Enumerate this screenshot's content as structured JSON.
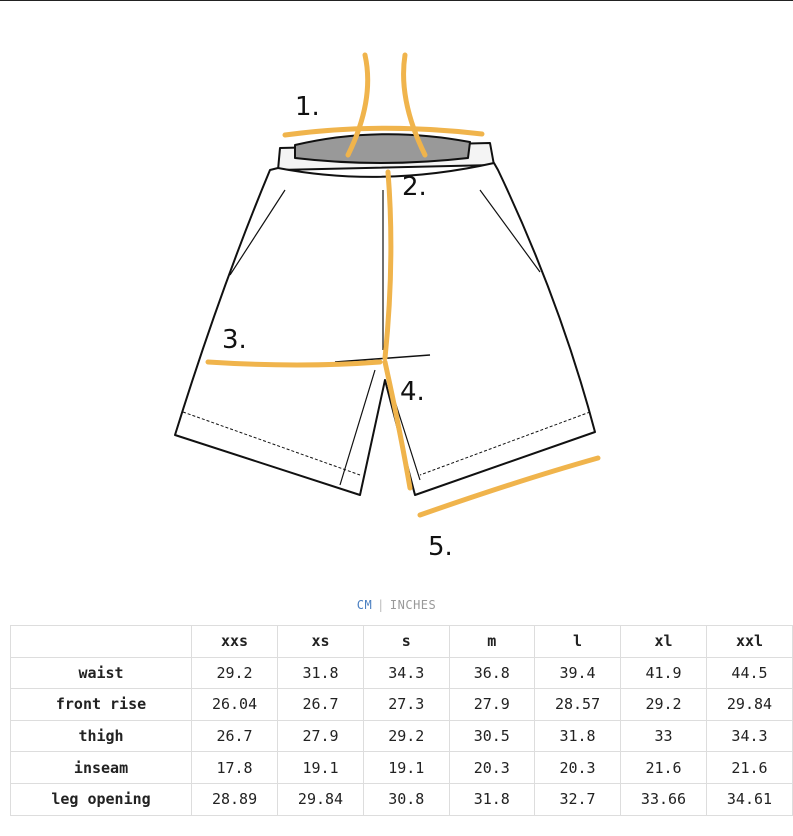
{
  "illustration": {
    "labels": [
      "1.",
      "2.",
      "3.",
      "4.",
      "5."
    ],
    "accent": "#f0b44c"
  },
  "unit_toggle": {
    "cm": "CM",
    "separator": "|",
    "inches": "INCHES",
    "active": "CM"
  },
  "table": {
    "sizes": [
      "xxs",
      "xs",
      "s",
      "m",
      "l",
      "xl",
      "xxl"
    ],
    "rows": [
      {
        "label": "waist",
        "values": [
          "29.2",
          "31.8",
          "34.3",
          "36.8",
          "39.4",
          "41.9",
          "44.5"
        ]
      },
      {
        "label": "front rise",
        "values": [
          "26.04",
          "26.7",
          "27.3",
          "27.9",
          "28.57",
          "29.2",
          "29.84"
        ]
      },
      {
        "label": "thigh",
        "values": [
          "26.7",
          "27.9",
          "29.2",
          "30.5",
          "31.8",
          "33",
          "34.3"
        ]
      },
      {
        "label": "inseam",
        "values": [
          "17.8",
          "19.1",
          "19.1",
          "20.3",
          "20.3",
          "21.6",
          "21.6"
        ]
      },
      {
        "label": "leg opening",
        "values": [
          "28.89",
          "29.84",
          "30.8",
          "31.8",
          "32.7",
          "33.66",
          "34.61"
        ]
      }
    ]
  }
}
